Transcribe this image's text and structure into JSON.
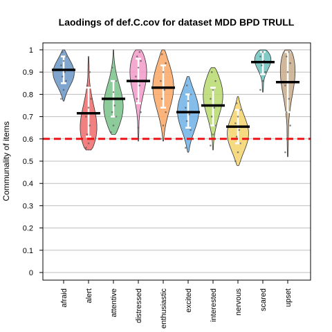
{
  "chart_data": {
    "type": "violin",
    "title": "Laodings of def.C.cov for dataset MDD BPD TRULL",
    "xlabel": "",
    "ylabel": "Communality of items",
    "ylim": [
      0,
      1
    ],
    "yticks": [
      "0",
      "0.1",
      "0.2",
      "0.3",
      "0.4",
      "0.5",
      "0.6",
      "0.7",
      "0.8",
      "0.9",
      "1"
    ],
    "grid": true,
    "reference_line": {
      "value": 0.6,
      "color": "#ee1111",
      "style": "dashed"
    },
    "categories": [
      "afraid",
      "alert",
      "attentive",
      "distressed",
      "enthusiastic",
      "excited",
      "interested",
      "nervous",
      "scared",
      "upset"
    ],
    "series": [
      {
        "category": "afraid",
        "color": "#6a96c8",
        "min": 0.77,
        "max": 1.0,
        "mean": 0.91,
        "sd_low": 0.85,
        "sd_high": 0.97,
        "mode": 0.9,
        "points": [
          0.78,
          0.82,
          0.86,
          0.88,
          0.9,
          0.93,
          0.95,
          0.97,
          0.99
        ]
      },
      {
        "category": "alert",
        "color": "#ef6b6b",
        "min": 0.55,
        "max": 0.97,
        "mean": 0.715,
        "sd_low": 0.61,
        "sd_high": 0.83,
        "mode": 0.6,
        "points": [
          0.56,
          0.58,
          0.6,
          0.62,
          0.66,
          0.7,
          0.74,
          0.78,
          0.84,
          0.9
        ]
      },
      {
        "category": "attentive",
        "color": "#79c28a",
        "min": 0.62,
        "max": 1.0,
        "mean": 0.78,
        "sd_low": 0.7,
        "sd_high": 0.86,
        "mode": 0.72,
        "points": [
          0.63,
          0.66,
          0.7,
          0.72,
          0.75,
          0.78,
          0.81,
          0.86,
          0.92
        ]
      },
      {
        "category": "distressed",
        "color": "#f19ac8",
        "min": 0.59,
        "max": 1.0,
        "mean": 0.86,
        "sd_low": 0.76,
        "sd_high": 0.96,
        "mode": 0.95,
        "points": [
          0.6,
          0.65,
          0.72,
          0.78,
          0.84,
          0.88,
          0.92,
          0.95,
          0.97,
          0.99
        ]
      },
      {
        "category": "enthusiastic",
        "color": "#fba766",
        "min": 0.59,
        "max": 1.0,
        "mean": 0.83,
        "sd_low": 0.74,
        "sd_high": 0.93,
        "mode": 0.85,
        "points": [
          0.6,
          0.66,
          0.72,
          0.78,
          0.82,
          0.86,
          0.9,
          0.94,
          0.98
        ]
      },
      {
        "category": "excited",
        "color": "#6fb2e6",
        "min": 0.54,
        "max": 0.88,
        "mean": 0.72,
        "sd_low": 0.65,
        "sd_high": 0.8,
        "mode": 0.73,
        "points": [
          0.56,
          0.6,
          0.64,
          0.68,
          0.71,
          0.74,
          0.77,
          0.8,
          0.84
        ]
      },
      {
        "category": "interested",
        "color": "#b8d96d",
        "min": 0.55,
        "max": 0.92,
        "mean": 0.75,
        "sd_low": 0.66,
        "sd_high": 0.83,
        "mode": 0.82,
        "points": [
          0.57,
          0.62,
          0.66,
          0.7,
          0.74,
          0.78,
          0.82,
          0.86,
          0.9
        ]
      },
      {
        "category": "nervous",
        "color": "#f5d36c",
        "min": 0.48,
        "max": 0.79,
        "mean": 0.655,
        "sd_low": 0.58,
        "sd_high": 0.73,
        "mode": 0.62,
        "points": [
          0.5,
          0.54,
          0.58,
          0.61,
          0.64,
          0.67,
          0.7,
          0.73,
          0.76
        ]
      },
      {
        "category": "scared",
        "color": "#6cc2bc",
        "min": 0.81,
        "max": 1.0,
        "mean": 0.945,
        "sd_low": 0.89,
        "sd_high": 0.99,
        "mode": 0.98,
        "points": [
          0.82,
          0.86,
          0.9,
          0.93,
          0.95,
          0.97,
          0.99
        ]
      },
      {
        "category": "upset",
        "color": "#c8ab8c",
        "min": 0.52,
        "max": 1.0,
        "mean": 0.855,
        "sd_low": 0.72,
        "sd_high": 0.99,
        "mode": 0.98,
        "points": [
          0.54,
          0.6,
          0.66,
          0.72,
          0.78,
          0.84,
          0.9,
          0.94,
          0.97,
          0.99
        ]
      }
    ]
  }
}
